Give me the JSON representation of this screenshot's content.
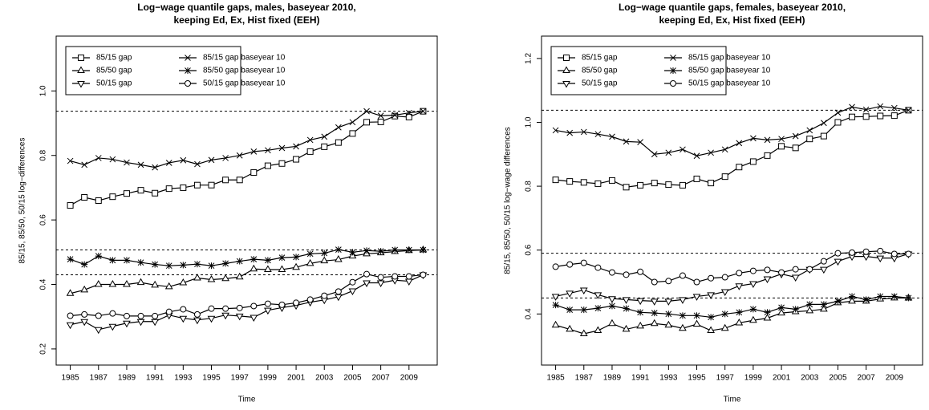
{
  "chart_data": [
    {
      "type": "line",
      "title": [
        "Log−wage quantile gaps, males, baseyear 2010,",
        "keeping Ed, Ex, Hist fixed (EEH)"
      ],
      "xlabel": "Time",
      "ylabel": "85/15, 85/50, 50/15 log−differences",
      "x": [
        1985,
        1986,
        1987,
        1988,
        1989,
        1990,
        1991,
        1992,
        1993,
        1994,
        1995,
        1996,
        1997,
        1998,
        1999,
        2000,
        2001,
        2002,
        2003,
        2004,
        2005,
        2006,
        2007,
        2008,
        2009,
        2010
      ],
      "xlim": [
        1984,
        2011
      ],
      "xticks": [
        1985,
        1987,
        1989,
        1991,
        1993,
        1995,
        1997,
        1999,
        2001,
        2003,
        2005,
        2007,
        2009
      ],
      "ylim": [
        0.15,
        1.17
      ],
      "yticks": [
        0.2,
        0.4,
        0.6,
        0.8,
        {
          "value": 1,
          "label": "1.0"
        }
      ],
      "hlines": [
        0.937,
        0.507,
        0.43
      ],
      "series": [
        {
          "name": "85/15 gap",
          "marker": "square",
          "color": "#000000",
          "values": [
            0.645,
            0.67,
            0.66,
            0.672,
            0.682,
            0.692,
            0.683,
            0.697,
            0.7,
            0.708,
            0.708,
            0.724,
            0.724,
            0.747,
            0.768,
            0.775,
            0.788,
            0.812,
            0.827,
            0.84,
            0.868,
            0.903,
            0.904,
            0.922,
            0.919,
            0.937
          ]
        },
        {
          "name": "85/50 gap",
          "marker": "triangle",
          "color": "#000000",
          "values": [
            0.372,
            0.383,
            0.4,
            0.4,
            0.4,
            0.406,
            0.398,
            0.393,
            0.405,
            0.42,
            0.415,
            0.418,
            0.423,
            0.448,
            0.446,
            0.446,
            0.453,
            0.465,
            0.473,
            0.477,
            0.488,
            0.495,
            0.498,
            0.502,
            0.505,
            0.507
          ]
        },
        {
          "name": "50/15 gap",
          "marker": "inv-triangle",
          "color": "#000000",
          "values": [
            0.275,
            0.285,
            0.26,
            0.27,
            0.28,
            0.285,
            0.285,
            0.305,
            0.295,
            0.29,
            0.295,
            0.305,
            0.302,
            0.298,
            0.32,
            0.328,
            0.335,
            0.345,
            0.352,
            0.362,
            0.38,
            0.405,
            0.405,
            0.413,
            0.41,
            0.43
          ]
        },
        {
          "name": "85/15 gap baseyear 10",
          "marker": "cross",
          "color": "#000000",
          "values": [
            0.783,
            0.771,
            0.792,
            0.788,
            0.778,
            0.771,
            0.763,
            0.777,
            0.785,
            0.773,
            0.786,
            0.792,
            0.8,
            0.812,
            0.816,
            0.823,
            0.828,
            0.848,
            0.858,
            0.887,
            0.903,
            0.937,
            0.923,
            0.925,
            0.932,
            0.937
          ]
        },
        {
          "name": "85/50 gap baseyear 10",
          "marker": "star",
          "color": "#000000",
          "values": [
            0.478,
            0.462,
            0.488,
            0.475,
            0.475,
            0.468,
            0.462,
            0.458,
            0.46,
            0.463,
            0.458,
            0.465,
            0.472,
            0.478,
            0.475,
            0.483,
            0.485,
            0.495,
            0.497,
            0.508,
            0.5,
            0.505,
            0.503,
            0.507,
            0.507,
            0.507
          ]
        },
        {
          "name": "50/15 gap baseyear 10",
          "marker": "circle",
          "color": "#000000",
          "values": [
            0.303,
            0.307,
            0.303,
            0.31,
            0.302,
            0.302,
            0.302,
            0.315,
            0.323,
            0.307,
            0.325,
            0.325,
            0.327,
            0.333,
            0.34,
            0.337,
            0.343,
            0.353,
            0.365,
            0.378,
            0.407,
            0.432,
            0.422,
            0.425,
            0.425,
            0.43
          ]
        }
      ]
    },
    {
      "type": "line",
      "title": [
        "Log−wage quantile gaps, females, baseyear 2010,",
        "keeping Ed, Ex, Hist fixed (EEH)"
      ],
      "xlabel": "Time",
      "ylabel": "85/15, 85/50, 50/15 log−wage differences",
      "x": [
        1985,
        1986,
        1987,
        1988,
        1989,
        1990,
        1991,
        1992,
        1993,
        1994,
        1995,
        1996,
        1997,
        1998,
        1999,
        2000,
        2001,
        2002,
        2003,
        2004,
        2005,
        2006,
        2007,
        2008,
        2009,
        2010
      ],
      "xlim": [
        1984,
        2011
      ],
      "xticks": [
        1985,
        1987,
        1989,
        1991,
        1993,
        1995,
        1997,
        1999,
        2001,
        2003,
        2005,
        2007,
        2009
      ],
      "ylim": [
        0.24,
        1.27
      ],
      "yticks": [
        0.4,
        0.6,
        0.8,
        {
          "value": 1,
          "label": "1.0"
        },
        1.2
      ],
      "hlines": [
        1.038,
        0.59,
        0.45
      ],
      "series": [
        {
          "name": "85/15 gap",
          "marker": "square",
          "color": "#000000",
          "values": [
            0.82,
            0.815,
            0.812,
            0.808,
            0.818,
            0.797,
            0.803,
            0.81,
            0.805,
            0.803,
            0.823,
            0.81,
            0.83,
            0.86,
            0.877,
            0.896,
            0.925,
            0.92,
            0.948,
            0.957,
            1.0,
            1.017,
            1.018,
            1.02,
            1.021,
            1.038
          ]
        },
        {
          "name": "85/50 gap",
          "marker": "triangle",
          "color": "#000000",
          "values": [
            0.365,
            0.352,
            0.338,
            0.348,
            0.37,
            0.352,
            0.362,
            0.37,
            0.365,
            0.355,
            0.368,
            0.348,
            0.355,
            0.372,
            0.38,
            0.387,
            0.403,
            0.407,
            0.41,
            0.415,
            0.435,
            0.44,
            0.44,
            0.447,
            0.45,
            0.45
          ]
        },
        {
          "name": "50/15 gap",
          "marker": "inv-triangle",
          "color": "#000000",
          "values": [
            0.455,
            0.465,
            0.475,
            0.46,
            0.448,
            0.445,
            0.442,
            0.44,
            0.44,
            0.445,
            0.455,
            0.46,
            0.47,
            0.488,
            0.495,
            0.51,
            0.525,
            0.515,
            0.54,
            0.54,
            0.565,
            0.58,
            0.58,
            0.575,
            0.575,
            0.588
          ]
        },
        {
          "name": "85/15 gap baseyear 10",
          "marker": "cross",
          "color": "#000000",
          "values": [
            0.975,
            0.967,
            0.97,
            0.963,
            0.955,
            0.94,
            0.938,
            0.9,
            0.905,
            0.915,
            0.895,
            0.905,
            0.915,
            0.935,
            0.95,
            0.945,
            0.948,
            0.957,
            0.975,
            0.998,
            1.03,
            1.048,
            1.04,
            1.05,
            1.045,
            1.038
          ]
        },
        {
          "name": "85/50 gap baseyear 10",
          "marker": "star",
          "color": "#000000",
          "values": [
            0.428,
            0.413,
            0.413,
            0.418,
            0.425,
            0.417,
            0.405,
            0.403,
            0.4,
            0.395,
            0.395,
            0.39,
            0.4,
            0.405,
            0.415,
            0.405,
            0.42,
            0.415,
            0.43,
            0.43,
            0.44,
            0.455,
            0.445,
            0.455,
            0.455,
            0.45
          ]
        },
        {
          "name": "50/15 gap baseyear 10",
          "marker": "circle",
          "color": "#000000",
          "values": [
            0.548,
            0.555,
            0.56,
            0.545,
            0.53,
            0.523,
            0.532,
            0.5,
            0.503,
            0.52,
            0.5,
            0.512,
            0.515,
            0.528,
            0.535,
            0.538,
            0.53,
            0.54,
            0.54,
            0.565,
            0.59,
            0.592,
            0.595,
            0.597,
            0.588,
            0.588
          ]
        }
      ]
    }
  ]
}
